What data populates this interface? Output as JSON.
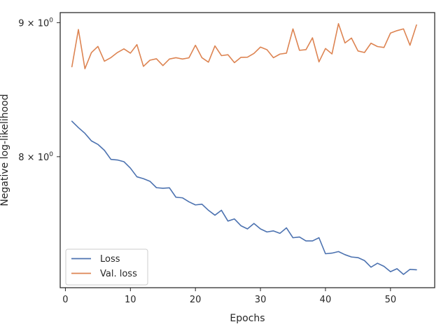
{
  "chart_data": {
    "type": "line",
    "xlabel": "Epochs",
    "ylabel": "Negative log-likelihood",
    "yscale": "log",
    "xlim": [
      -0.8,
      56.8
    ],
    "ylim": [
      7.13,
      9.08
    ],
    "x_ticks": [
      0,
      10,
      20,
      30,
      40,
      50
    ],
    "y_ticks": [
      {
        "value": 8.0,
        "mantissa": "8",
        "base": "10",
        "exponent": "0"
      },
      {
        "value": 9.0,
        "mantissa": "9",
        "base": "10",
        "exponent": "0"
      }
    ],
    "times_symbol": "×",
    "grid": false,
    "legend_position": "lower-left",
    "x": [
      1,
      2,
      3,
      4,
      5,
      6,
      7,
      8,
      9,
      10,
      11,
      12,
      13,
      14,
      15,
      16,
      17,
      18,
      19,
      20,
      21,
      22,
      23,
      24,
      25,
      26,
      27,
      28,
      29,
      30,
      31,
      32,
      33,
      34,
      35,
      36,
      37,
      38,
      39,
      40,
      41,
      42,
      43,
      44,
      45,
      46,
      47,
      48,
      49,
      50,
      51,
      52,
      53,
      54
    ],
    "series": [
      {
        "name": "Loss",
        "color": "#4c72b0",
        "values": [
          8.253,
          8.207,
          8.166,
          8.112,
          8.087,
          8.045,
          7.981,
          7.977,
          7.965,
          7.92,
          7.86,
          7.847,
          7.829,
          7.785,
          7.781,
          7.784,
          7.72,
          7.716,
          7.689,
          7.668,
          7.673,
          7.632,
          7.599,
          7.632,
          7.56,
          7.574,
          7.529,
          7.508,
          7.544,
          7.508,
          7.488,
          7.495,
          7.479,
          7.515,
          7.45,
          7.455,
          7.429,
          7.429,
          7.45,
          7.346,
          7.35,
          7.36,
          7.34,
          7.325,
          7.321,
          7.302,
          7.26,
          7.285,
          7.265,
          7.231,
          7.25,
          7.214,
          7.246,
          7.243
        ]
      },
      {
        "name": "Val. loss",
        "color": "#dd8452",
        "values": [
          8.658,
          8.946,
          8.643,
          8.766,
          8.814,
          8.7,
          8.728,
          8.767,
          8.795,
          8.762,
          8.828,
          8.661,
          8.708,
          8.719,
          8.667,
          8.717,
          8.727,
          8.717,
          8.726,
          8.823,
          8.727,
          8.693,
          8.818,
          8.743,
          8.75,
          8.689,
          8.73,
          8.731,
          8.76,
          8.809,
          8.789,
          8.727,
          8.755,
          8.762,
          8.951,
          8.784,
          8.789,
          8.881,
          8.695,
          8.798,
          8.756,
          8.992,
          8.841,
          8.879,
          8.779,
          8.767,
          8.839,
          8.813,
          8.806,
          8.918,
          8.937,
          8.951,
          8.823,
          8.982
        ]
      }
    ]
  }
}
